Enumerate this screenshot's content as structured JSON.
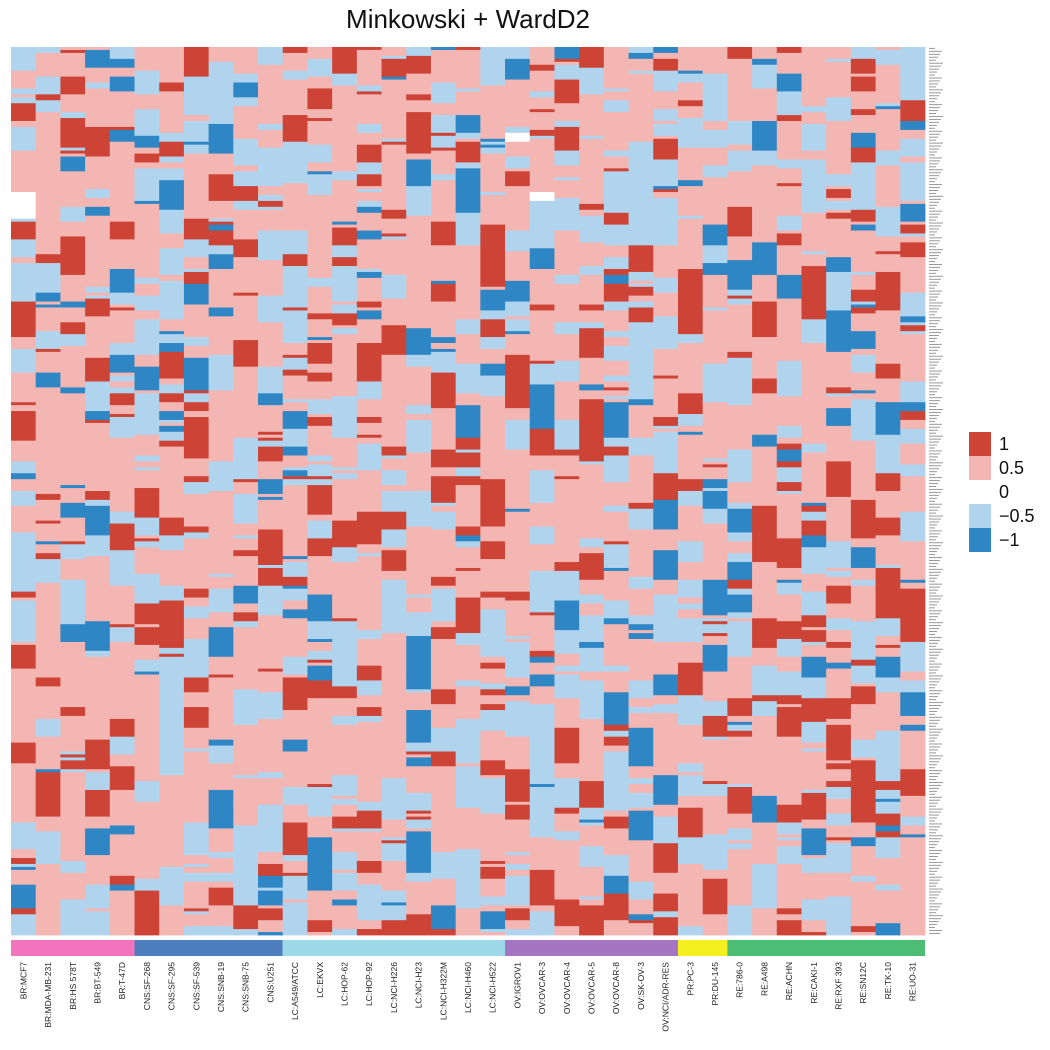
{
  "chart_data": {
    "type": "heatmap",
    "title": "Minkowski + WardD2",
    "row_count": 300,
    "columns": [
      "BR:MCF7",
      "BR:MDA-MB-231",
      "BR:HS 578T",
      "BR:BT-549",
      "BR:T-47D",
      "CNS:SF-268",
      "CNS:SF-295",
      "CNS:SF-539",
      "CNS:SNB-19",
      "CNS:SNB-75",
      "CNS:U251",
      "LC:A549/ATCC",
      "LC:EKVX",
      "LC:HOP-62",
      "LC:HOP-92",
      "LC:NCI-H226",
      "LC:NCI-H23",
      "LC:NCI-H322M",
      "LC:NCI-H460",
      "LC:NCI-H522",
      "OV:IGROV1",
      "OV:OVCAR-3",
      "OV:OVCAR-4",
      "OV:OVCAR-5",
      "OV:OVCAR-8",
      "OV:SK-OV-3",
      "OV:NCI/ADR-RES",
      "PR:PC-3",
      "PR:DU-145",
      "RE:786-0",
      "RE:A498",
      "RE:ACHN",
      "RE:CAKI-1",
      "RE:RXF 393",
      "RE:SN12C",
      "RE:TK-10",
      "RE:UO-31"
    ],
    "groups": [
      {
        "name": "BR",
        "count": 5,
        "color": "#f274bc"
      },
      {
        "name": "CNS",
        "count": 6,
        "color": "#4f7ebf"
      },
      {
        "name": "LC",
        "count": 9,
        "color": "#9bd9e8"
      },
      {
        "name": "OV",
        "count": 7,
        "color": "#a476c2"
      },
      {
        "name": "PR",
        "count": 2,
        "color": "#f6ef1f"
      },
      {
        "name": "RE",
        "count": 8,
        "color": "#4dbd74"
      }
    ],
    "legend": {
      "placement": "right",
      "entries": [
        {
          "label": "1",
          "value": 1,
          "color": "#cd4437"
        },
        {
          "label": "0.5",
          "value": 0.5,
          "color": "#f4b6b3"
        },
        {
          "label": "0",
          "value": 0,
          "color": "#ffffff"
        },
        {
          "label": "−0.5",
          "value": -0.5,
          "color": "#b0d4ee"
        },
        {
          "label": "−1",
          "value": -1,
          "color": "#2e86c4"
        }
      ]
    }
  }
}
